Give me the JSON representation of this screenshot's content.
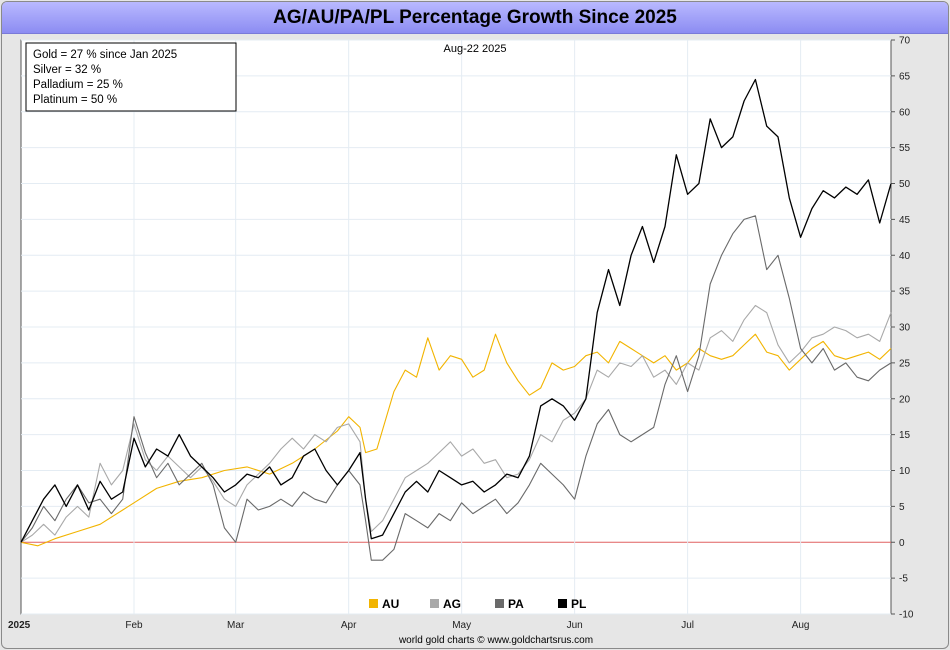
{
  "title": "AG/AU/PA/PL Percentage Growth Since 2025",
  "footer": "world gold charts © www.goldchartsrus.com",
  "colors": {
    "AU": "#f2b400",
    "AG": "#a9a9a9",
    "PA": "#6a6a6a",
    "PL": "#000000",
    "zero_line": "#e06060",
    "grid": "#e4ecf3"
  },
  "chart_data": {
    "type": "line",
    "title": "AG/AU/PA/PL Percentage Growth Since 2025",
    "date_label": "Aug-22  2025",
    "ylim": [
      -10,
      70
    ],
    "y_ticks": [
      70,
      65,
      60,
      55,
      50,
      45,
      40,
      35,
      30,
      25,
      20,
      15,
      10,
      5,
      0,
      -5,
      -10
    ],
    "x_range": [
      0,
      7.7
    ],
    "x_ticks": [
      {
        "label": "2025",
        "x": 0.0
      },
      {
        "label": "Feb",
        "x": 1.0
      },
      {
        "label": "Mar",
        "x": 1.9
      },
      {
        "label": "Apr",
        "x": 2.9
      },
      {
        "label": "May",
        "x": 3.9
      },
      {
        "label": "Jun",
        "x": 4.9
      },
      {
        "label": "Jul",
        "x": 5.9
      },
      {
        "label": "Aug",
        "x": 6.9
      }
    ],
    "legend_box": [
      "Gold = 27 % since Jan 2025",
      "Silver = 32 %",
      "Palladium = 25 %",
      "Platinum = 50 %"
    ],
    "series": [
      {
        "name": "AU",
        "points": [
          [
            0,
            0
          ],
          [
            0.15,
            -0.5
          ],
          [
            0.3,
            0.5
          ],
          [
            0.5,
            1.5
          ],
          [
            0.7,
            2.5
          ],
          [
            0.9,
            4.5
          ],
          [
            1.0,
            5.5
          ],
          [
            1.2,
            7.5
          ],
          [
            1.4,
            8.5
          ],
          [
            1.6,
            9.0
          ],
          [
            1.8,
            10.0
          ],
          [
            2.0,
            10.5
          ],
          [
            2.2,
            9.5
          ],
          [
            2.4,
            11.0
          ],
          [
            2.6,
            13.0
          ],
          [
            2.8,
            15.5
          ],
          [
            2.9,
            17.5
          ],
          [
            3.0,
            16.0
          ],
          [
            3.05,
            12.5
          ],
          [
            3.15,
            13.0
          ],
          [
            3.3,
            21.0
          ],
          [
            3.4,
            24.0
          ],
          [
            3.5,
            23.0
          ],
          [
            3.6,
            28.5
          ],
          [
            3.7,
            24.0
          ],
          [
            3.8,
            26.0
          ],
          [
            3.9,
            25.5
          ],
          [
            4.0,
            23.0
          ],
          [
            4.1,
            24.0
          ],
          [
            4.2,
            29.0
          ],
          [
            4.3,
            25.0
          ],
          [
            4.4,
            22.5
          ],
          [
            4.5,
            20.5
          ],
          [
            4.6,
            21.5
          ],
          [
            4.7,
            25.0
          ],
          [
            4.8,
            24.0
          ],
          [
            4.9,
            24.5
          ],
          [
            5.0,
            26.0
          ],
          [
            5.1,
            26.5
          ],
          [
            5.2,
            25.0
          ],
          [
            5.3,
            28.0
          ],
          [
            5.4,
            27.0
          ],
          [
            5.5,
            26.0
          ],
          [
            5.6,
            25.0
          ],
          [
            5.7,
            26.0
          ],
          [
            5.8,
            24.0
          ],
          [
            5.9,
            25.0
          ],
          [
            6.0,
            27.0
          ],
          [
            6.1,
            26.0
          ],
          [
            6.2,
            25.5
          ],
          [
            6.3,
            26.0
          ],
          [
            6.4,
            27.5
          ],
          [
            6.5,
            29.0
          ],
          [
            6.6,
            26.5
          ],
          [
            6.7,
            26.0
          ],
          [
            6.8,
            24.0
          ],
          [
            6.9,
            25.5
          ],
          [
            7.0,
            27.0
          ],
          [
            7.1,
            28.0
          ],
          [
            7.2,
            26.0
          ],
          [
            7.3,
            25.5
          ],
          [
            7.4,
            26.0
          ],
          [
            7.5,
            26.5
          ],
          [
            7.6,
            25.5
          ],
          [
            7.7,
            27.0
          ]
        ]
      },
      {
        "name": "AG",
        "points": [
          [
            0,
            0
          ],
          [
            0.1,
            1.0
          ],
          [
            0.2,
            2.5
          ],
          [
            0.3,
            1.0
          ],
          [
            0.4,
            3.5
          ],
          [
            0.5,
            5.0
          ],
          [
            0.6,
            3.5
          ],
          [
            0.7,
            11.0
          ],
          [
            0.8,
            8.0
          ],
          [
            0.9,
            10.0
          ],
          [
            1.0,
            16.5
          ],
          [
            1.1,
            11.5
          ],
          [
            1.2,
            10.0
          ],
          [
            1.3,
            12.0
          ],
          [
            1.4,
            10.5
          ],
          [
            1.5,
            9.0
          ],
          [
            1.6,
            10.5
          ],
          [
            1.7,
            8.5
          ],
          [
            1.8,
            6.0
          ],
          [
            1.9,
            5.0
          ],
          [
            2.0,
            8.0
          ],
          [
            2.1,
            9.5
          ],
          [
            2.2,
            11.0
          ],
          [
            2.3,
            13.0
          ],
          [
            2.4,
            14.5
          ],
          [
            2.5,
            13.0
          ],
          [
            2.6,
            15.0
          ],
          [
            2.7,
            14.0
          ],
          [
            2.8,
            16.0
          ],
          [
            2.9,
            16.5
          ],
          [
            3.0,
            14.0
          ],
          [
            3.05,
            6.0
          ],
          [
            3.1,
            1.5
          ],
          [
            3.2,
            3.0
          ],
          [
            3.3,
            6.0
          ],
          [
            3.4,
            9.0
          ],
          [
            3.5,
            10.0
          ],
          [
            3.6,
            11.0
          ],
          [
            3.7,
            12.5
          ],
          [
            3.8,
            14.0
          ],
          [
            3.9,
            12.0
          ],
          [
            4.0,
            13.0
          ],
          [
            4.1,
            11.0
          ],
          [
            4.2,
            11.5
          ],
          [
            4.3,
            9.0
          ],
          [
            4.4,
            9.5
          ],
          [
            4.5,
            11.5
          ],
          [
            4.6,
            15.0
          ],
          [
            4.7,
            14.0
          ],
          [
            4.8,
            17.0
          ],
          [
            4.9,
            18.0
          ],
          [
            5.0,
            20.0
          ],
          [
            5.1,
            24.0
          ],
          [
            5.2,
            23.0
          ],
          [
            5.3,
            25.0
          ],
          [
            5.4,
            24.5
          ],
          [
            5.5,
            26.0
          ],
          [
            5.6,
            23.0
          ],
          [
            5.7,
            24.0
          ],
          [
            5.8,
            22.0
          ],
          [
            5.9,
            25.0
          ],
          [
            6.0,
            24.0
          ],
          [
            6.1,
            28.5
          ],
          [
            6.2,
            29.5
          ],
          [
            6.3,
            28.0
          ],
          [
            6.4,
            31.0
          ],
          [
            6.5,
            33.0
          ],
          [
            6.6,
            32.0
          ],
          [
            6.7,
            27.5
          ],
          [
            6.8,
            25.0
          ],
          [
            6.9,
            26.5
          ],
          [
            7.0,
            28.5
          ],
          [
            7.1,
            29.0
          ],
          [
            7.2,
            30.0
          ],
          [
            7.3,
            29.5
          ],
          [
            7.4,
            28.5
          ],
          [
            7.5,
            29.0
          ],
          [
            7.6,
            28.0
          ],
          [
            7.7,
            32.0
          ]
        ]
      },
      {
        "name": "PA",
        "points": [
          [
            0,
            0
          ],
          [
            0.1,
            2.0
          ],
          [
            0.2,
            5.0
          ],
          [
            0.3,
            3.0
          ],
          [
            0.4,
            6.0
          ],
          [
            0.5,
            8.0
          ],
          [
            0.6,
            5.5
          ],
          [
            0.7,
            6.0
          ],
          [
            0.8,
            4.0
          ],
          [
            0.9,
            6.0
          ],
          [
            1.0,
            17.5
          ],
          [
            1.1,
            12.5
          ],
          [
            1.2,
            9.0
          ],
          [
            1.3,
            11.0
          ],
          [
            1.4,
            8.0
          ],
          [
            1.5,
            9.5
          ],
          [
            1.6,
            11.0
          ],
          [
            1.7,
            8.0
          ],
          [
            1.8,
            2.0
          ],
          [
            1.9,
            0.0
          ],
          [
            2.0,
            6.0
          ],
          [
            2.1,
            4.5
          ],
          [
            2.2,
            5.0
          ],
          [
            2.3,
            6.0
          ],
          [
            2.4,
            5.0
          ],
          [
            2.5,
            7.0
          ],
          [
            2.6,
            6.0
          ],
          [
            2.7,
            5.5
          ],
          [
            2.8,
            8.0
          ],
          [
            2.9,
            10.0
          ],
          [
            3.0,
            8.0
          ],
          [
            3.05,
            3.0
          ],
          [
            3.1,
            -2.5
          ],
          [
            3.2,
            -2.5
          ],
          [
            3.3,
            -1.0
          ],
          [
            3.4,
            4.0
          ],
          [
            3.5,
            3.0
          ],
          [
            3.6,
            2.0
          ],
          [
            3.7,
            4.0
          ],
          [
            3.8,
            3.0
          ],
          [
            3.9,
            5.5
          ],
          [
            4.0,
            4.0
          ],
          [
            4.1,
            5.0
          ],
          [
            4.2,
            6.0
          ],
          [
            4.3,
            4.0
          ],
          [
            4.4,
            5.5
          ],
          [
            4.5,
            8.0
          ],
          [
            4.6,
            11.0
          ],
          [
            4.7,
            9.5
          ],
          [
            4.8,
            8.0
          ],
          [
            4.9,
            6.0
          ],
          [
            5.0,
            12.0
          ],
          [
            5.1,
            16.5
          ],
          [
            5.2,
            18.5
          ],
          [
            5.3,
            15.0
          ],
          [
            5.4,
            14.0
          ],
          [
            5.5,
            15.0
          ],
          [
            5.6,
            16.0
          ],
          [
            5.7,
            22.0
          ],
          [
            5.8,
            26.0
          ],
          [
            5.9,
            21.0
          ],
          [
            6.0,
            26.0
          ],
          [
            6.1,
            36.0
          ],
          [
            6.2,
            40.0
          ],
          [
            6.3,
            43.0
          ],
          [
            6.4,
            45.0
          ],
          [
            6.5,
            45.5
          ],
          [
            6.6,
            38.0
          ],
          [
            6.7,
            40.0
          ],
          [
            6.8,
            34.0
          ],
          [
            6.9,
            27.0
          ],
          [
            7.0,
            25.0
          ],
          [
            7.1,
            27.0
          ],
          [
            7.2,
            24.0
          ],
          [
            7.3,
            25.0
          ],
          [
            7.4,
            23.0
          ],
          [
            7.5,
            22.5
          ],
          [
            7.6,
            24.0
          ],
          [
            7.7,
            25.0
          ]
        ]
      },
      {
        "name": "PL",
        "points": [
          [
            0,
            0
          ],
          [
            0.1,
            3.0
          ],
          [
            0.2,
            6.0
          ],
          [
            0.3,
            8.0
          ],
          [
            0.4,
            5.0
          ],
          [
            0.5,
            8.0
          ],
          [
            0.6,
            4.5
          ],
          [
            0.7,
            8.5
          ],
          [
            0.8,
            6.0
          ],
          [
            0.9,
            7.0
          ],
          [
            1.0,
            14.5
          ],
          [
            1.1,
            10.5
          ],
          [
            1.2,
            13.0
          ],
          [
            1.3,
            12.0
          ],
          [
            1.4,
            15.0
          ],
          [
            1.5,
            12.0
          ],
          [
            1.6,
            10.5
          ],
          [
            1.7,
            9.0
          ],
          [
            1.8,
            7.0
          ],
          [
            1.9,
            8.0
          ],
          [
            2.0,
            9.5
          ],
          [
            2.1,
            9.0
          ],
          [
            2.2,
            10.5
          ],
          [
            2.3,
            8.0
          ],
          [
            2.4,
            9.0
          ],
          [
            2.5,
            12.0
          ],
          [
            2.6,
            13.0
          ],
          [
            2.7,
            10.0
          ],
          [
            2.8,
            8.0
          ],
          [
            2.9,
            10.0
          ],
          [
            3.0,
            12.5
          ],
          [
            3.05,
            6.0
          ],
          [
            3.1,
            0.5
          ],
          [
            3.2,
            1.0
          ],
          [
            3.3,
            4.0
          ],
          [
            3.4,
            7.0
          ],
          [
            3.5,
            8.5
          ],
          [
            3.6,
            7.0
          ],
          [
            3.7,
            10.0
          ],
          [
            3.8,
            9.0
          ],
          [
            3.9,
            8.0
          ],
          [
            4.0,
            8.5
          ],
          [
            4.1,
            7.0
          ],
          [
            4.2,
            8.0
          ],
          [
            4.3,
            9.5
          ],
          [
            4.4,
            9.0
          ],
          [
            4.5,
            12.0
          ],
          [
            4.6,
            19.0
          ],
          [
            4.7,
            20.0
          ],
          [
            4.8,
            19.0
          ],
          [
            4.9,
            17.0
          ],
          [
            5.0,
            20.0
          ],
          [
            5.1,
            32.0
          ],
          [
            5.2,
            38.0
          ],
          [
            5.3,
            33.0
          ],
          [
            5.4,
            40.0
          ],
          [
            5.5,
            44.0
          ],
          [
            5.6,
            39.0
          ],
          [
            5.7,
            44.0
          ],
          [
            5.8,
            54.0
          ],
          [
            5.9,
            48.5
          ],
          [
            6.0,
            50.0
          ],
          [
            6.1,
            59.0
          ],
          [
            6.2,
            55.0
          ],
          [
            6.3,
            56.5
          ],
          [
            6.4,
            61.5
          ],
          [
            6.5,
            64.5
          ],
          [
            6.6,
            58.0
          ],
          [
            6.7,
            56.5
          ],
          [
            6.8,
            48.0
          ],
          [
            6.9,
            42.5
          ],
          [
            7.0,
            46.5
          ],
          [
            7.1,
            49.0
          ],
          [
            7.2,
            48.0
          ],
          [
            7.3,
            49.5
          ],
          [
            7.4,
            48.5
          ],
          [
            7.5,
            50.5
          ],
          [
            7.6,
            44.5
          ],
          [
            7.7,
            50.0
          ]
        ]
      }
    ]
  }
}
